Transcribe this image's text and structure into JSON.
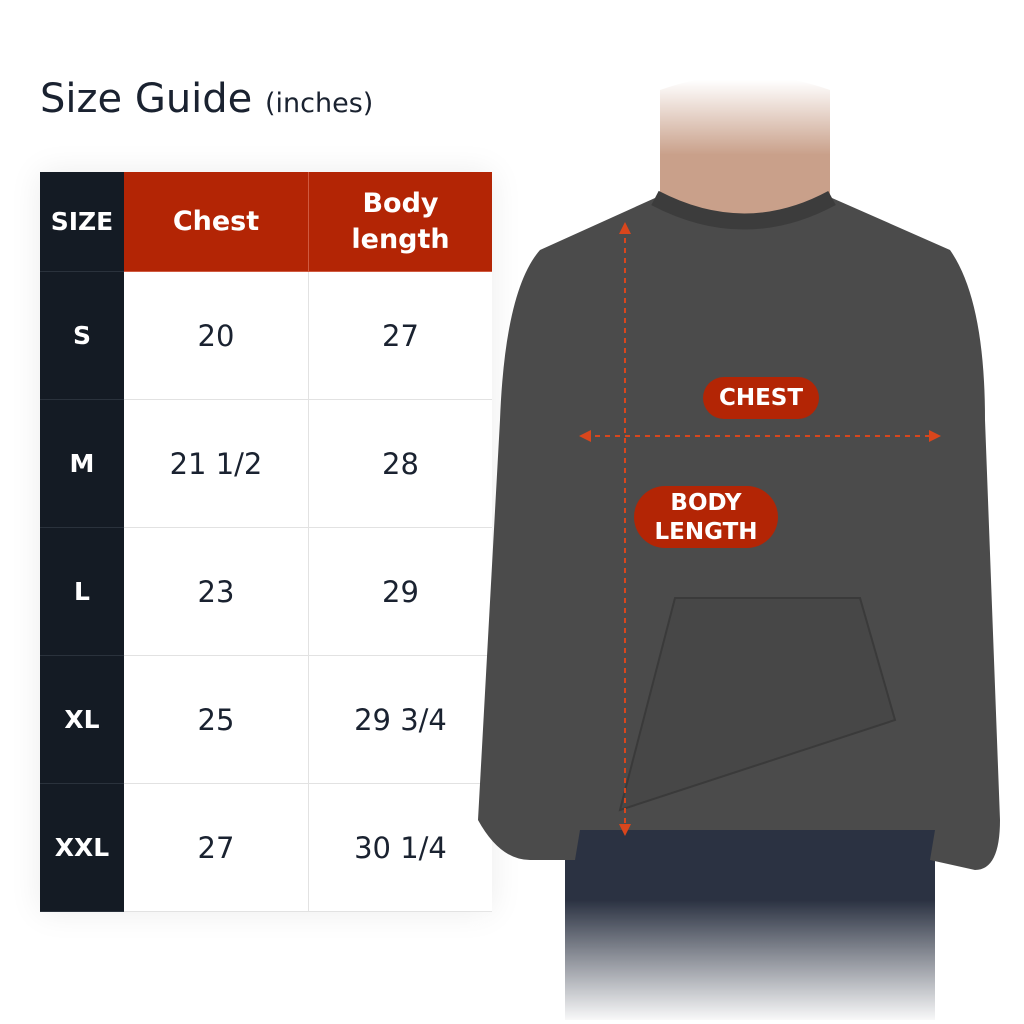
{
  "title": {
    "main": "Size Guide",
    "unit": "(inches)"
  },
  "table": {
    "headers": [
      "SIZE",
      "Chest",
      "Body length"
    ],
    "rows": [
      {
        "size": "S",
        "chest": "20",
        "body_length": "27"
      },
      {
        "size": "M",
        "chest": "21 1/2",
        "body_length": "28"
      },
      {
        "size": "L",
        "chest": "23",
        "body_length": "29"
      },
      {
        "size": "XL",
        "chest": "25",
        "body_length": "29 3/4"
      },
      {
        "size": "XXL",
        "chest": "27",
        "body_length": "30 1/4"
      }
    ]
  },
  "labels": {
    "chest": "CHEST",
    "body_length_1": "BODY",
    "body_length_2": "LENGTH"
  },
  "colors": {
    "accent": "#b32505",
    "dark": "#141b24",
    "garment": "#4b4b4b"
  }
}
